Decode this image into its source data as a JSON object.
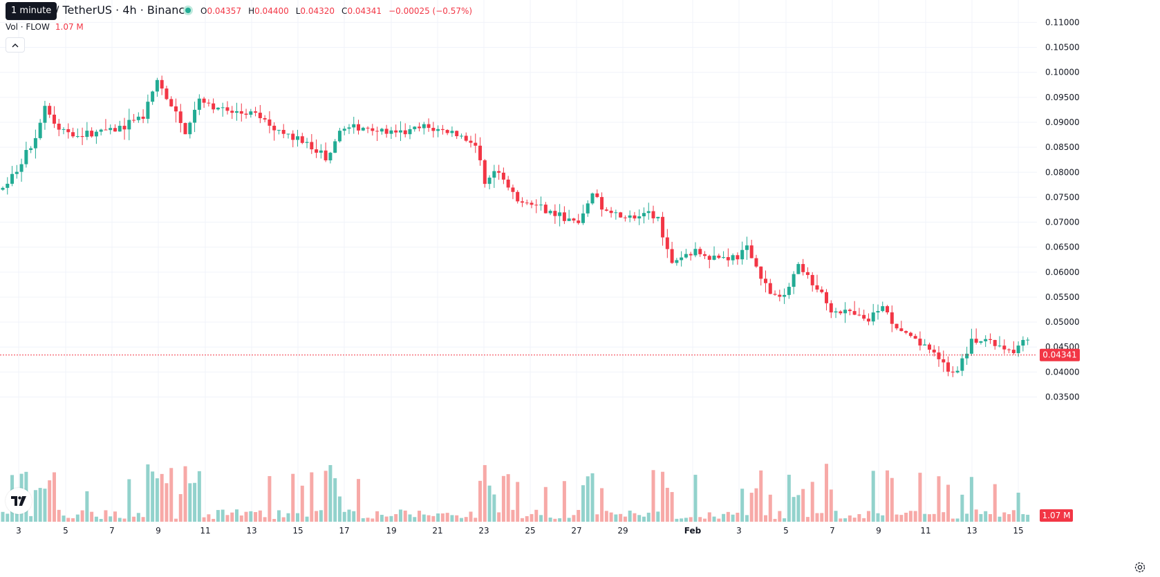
{
  "header": {
    "interval_tooltip": "1 minute",
    "title": "/ TetherUS · 4h · Binance",
    "ohlc": {
      "o_label": "O",
      "o": "0.04357",
      "h_label": "H",
      "h": "0.04400",
      "l_label": "L",
      "l": "0.04320",
      "c_label": "C",
      "c": "0.04341",
      "change": "−0.00025 (−0.57%)"
    },
    "volume_label": "Vol · FLOW",
    "volume_value": "1.07 M"
  },
  "colors": {
    "up": "#22ab94",
    "down": "#f23645",
    "up_volume": "#92d2cc",
    "down_volume": "#f7a9a7",
    "grid": "#f0f3fa",
    "axis_text": "#131722"
  },
  "icons": {
    "collapse": "chevron-up-icon",
    "logo": "tradingview-logo-icon",
    "settings": "gear-icon"
  },
  "chart_data": {
    "type": "candlestick",
    "y_axis": {
      "ylim": [
        0.0315,
        0.1105
      ],
      "ticks": [
        "0.11000",
        "0.10500",
        "0.10000",
        "0.09500",
        "0.09000",
        "0.08500",
        "0.08000",
        "0.07500",
        "0.07000",
        "0.06500",
        "0.06000",
        "0.05500",
        "0.05000",
        "0.04500",
        "0.04000",
        "0.03500"
      ]
    },
    "x_axis": {
      "ticks": [
        "3",
        "5",
        "7",
        "9",
        "11",
        "13",
        "15",
        "17",
        "19",
        "21",
        "23",
        "25",
        "27",
        "29",
        "Feb",
        "3",
        "5",
        "7",
        "9",
        "11",
        "13",
        "15"
      ]
    },
    "last_price": "0.04341",
    "last_volume": "1.07 M",
    "price_path": [
      [
        2.0,
        0.0765
      ],
      [
        3.2,
        0.087
      ],
      [
        3.5,
        0.0935
      ],
      [
        4.0,
        0.0885
      ],
      [
        5.0,
        0.0875
      ],
      [
        6.0,
        0.0885
      ],
      [
        7.0,
        0.091
      ],
      [
        7.5,
        0.0985
      ],
      [
        8.0,
        0.093
      ],
      [
        8.5,
        0.088
      ],
      [
        9.0,
        0.095
      ],
      [
        10.0,
        0.092
      ],
      [
        11.0,
        0.0915
      ],
      [
        12.0,
        0.088
      ],
      [
        13.0,
        0.0855
      ],
      [
        13.5,
        0.083
      ],
      [
        14.0,
        0.0885
      ],
      [
        15.0,
        0.089
      ],
      [
        16.0,
        0.0875
      ],
      [
        17.0,
        0.089
      ],
      [
        18.0,
        0.088
      ],
      [
        18.8,
        0.086
      ],
      [
        19.2,
        0.078
      ],
      [
        19.6,
        0.0805
      ],
      [
        20.3,
        0.074
      ],
      [
        21.0,
        0.0735
      ],
      [
        21.7,
        0.0715
      ],
      [
        22.5,
        0.0695
      ],
      [
        23.0,
        0.0755
      ],
      [
        23.6,
        0.0715
      ],
      [
        24.5,
        0.071
      ],
      [
        25.3,
        0.0715
      ],
      [
        25.8,
        0.062
      ],
      [
        26.5,
        0.064
      ],
      [
        27.5,
        0.063
      ],
      [
        28.2,
        0.063
      ],
      [
        28.5,
        0.065
      ],
      [
        28.8,
        0.0615
      ],
      [
        29.3,
        0.056
      ],
      [
        29.8,
        0.0545
      ],
      [
        30.3,
        0.061
      ],
      [
        30.7,
        0.0585
      ],
      [
        31.0,
        0.0575
      ],
      [
        31.4,
        0.053
      ],
      [
        32.0,
        0.052
      ],
      [
        32.8,
        0.05
      ],
      [
        33.3,
        0.053
      ],
      [
        34.0,
        0.048
      ],
      [
        34.5,
        0.046
      ],
      [
        35.0,
        0.0445
      ],
      [
        35.5,
        0.0415
      ],
      [
        35.9,
        0.04
      ],
      [
        36.3,
        0.044
      ],
      [
        36.6,
        0.0465
      ],
      [
        37.3,
        0.0455
      ],
      [
        38.0,
        0.0445
      ],
      [
        38.5,
        0.0465
      ],
      [
        38.8,
        0.0495
      ],
      [
        39.3,
        0.048
      ],
      [
        39.8,
        0.046
      ],
      [
        40.5,
        0.047
      ],
      [
        41.0,
        0.048
      ],
      [
        41.5,
        0.047
      ],
      [
        41.9,
        0.04
      ],
      [
        42.5,
        0.0385
      ],
      [
        42.8,
        0.043
      ],
      [
        43.0,
        0.044
      ],
      [
        43.2,
        0.0434
      ]
    ]
  }
}
